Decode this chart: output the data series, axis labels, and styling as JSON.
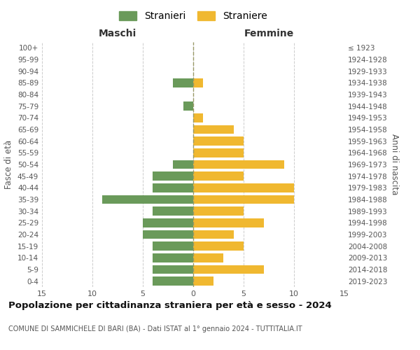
{
  "age_groups_bottom_to_top": [
    "0-4",
    "5-9",
    "10-14",
    "15-19",
    "20-24",
    "25-29",
    "30-34",
    "35-39",
    "40-44",
    "45-49",
    "50-54",
    "55-59",
    "60-64",
    "65-69",
    "70-74",
    "75-79",
    "80-84",
    "85-89",
    "90-94",
    "95-99",
    "100+"
  ],
  "birth_years_bottom_to_top": [
    "2019-2023",
    "2014-2018",
    "2009-2013",
    "2004-2008",
    "1999-2003",
    "1994-1998",
    "1989-1993",
    "1984-1988",
    "1979-1983",
    "1974-1978",
    "1969-1973",
    "1964-1968",
    "1959-1963",
    "1954-1958",
    "1949-1953",
    "1944-1948",
    "1939-1943",
    "1934-1938",
    "1929-1933",
    "1924-1928",
    "≤ 1923"
  ],
  "males_bottom_to_top": [
    4,
    4,
    4,
    4,
    5,
    5,
    4,
    9,
    4,
    4,
    2,
    0,
    0,
    0,
    0,
    1,
    0,
    2,
    0,
    0,
    0
  ],
  "females_bottom_to_top": [
    2,
    7,
    3,
    5,
    4,
    7,
    5,
    10,
    10,
    5,
    9,
    5,
    5,
    4,
    1,
    0,
    0,
    1,
    0,
    0,
    0
  ],
  "male_color": "#6a9a5a",
  "female_color": "#f0b830",
  "legend_male": "Stranieri",
  "legend_female": "Straniere",
  "xlabel_left": "Maschi",
  "xlabel_right": "Femmine",
  "ylabel_left": "Fasce di età",
  "ylabel_right": "Anni di nascita",
  "xlim": 15,
  "title": "Popolazione per cittadinanza straniera per età e sesso - 2024",
  "subtitle": "COMUNE DI SAMMICHELE DI BARI (BA) - Dati ISTAT al 1° gennaio 2024 - TUTTITALIA.IT",
  "background_color": "#ffffff",
  "grid_color": "#cccccc"
}
